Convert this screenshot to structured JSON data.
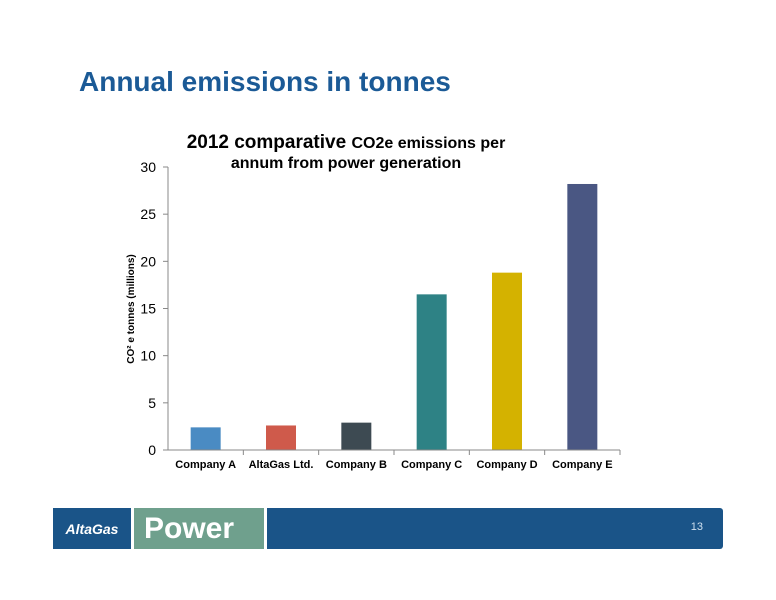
{
  "slide": {
    "title": "Annual emissions in tonnes",
    "page_number": "13"
  },
  "footer": {
    "logo_text": "AltaGas",
    "tagline": "Power"
  },
  "chart_data": {
    "type": "bar",
    "title_part1": "2012 comparative ",
    "title_part2": "CO2e emissions per",
    "title_line2": "annum from power generation",
    "ylabel": "CO² e tonnes (millions)",
    "xlabel": "",
    "ylim": [
      0,
      30
    ],
    "yticks": [
      0,
      5,
      10,
      15,
      20,
      25,
      30
    ],
    "categories": [
      "Company A",
      "AltaGas Ltd.",
      "Company B",
      "Company C",
      "Company D",
      "Company E"
    ],
    "values": [
      2.4,
      2.6,
      2.9,
      16.5,
      18.8,
      28.2
    ],
    "colors": [
      "#4a8bc3",
      "#cf5a4b",
      "#3d4a52",
      "#2e8285",
      "#d4b200",
      "#4a5783"
    ],
    "grid": false,
    "legend": "none"
  }
}
